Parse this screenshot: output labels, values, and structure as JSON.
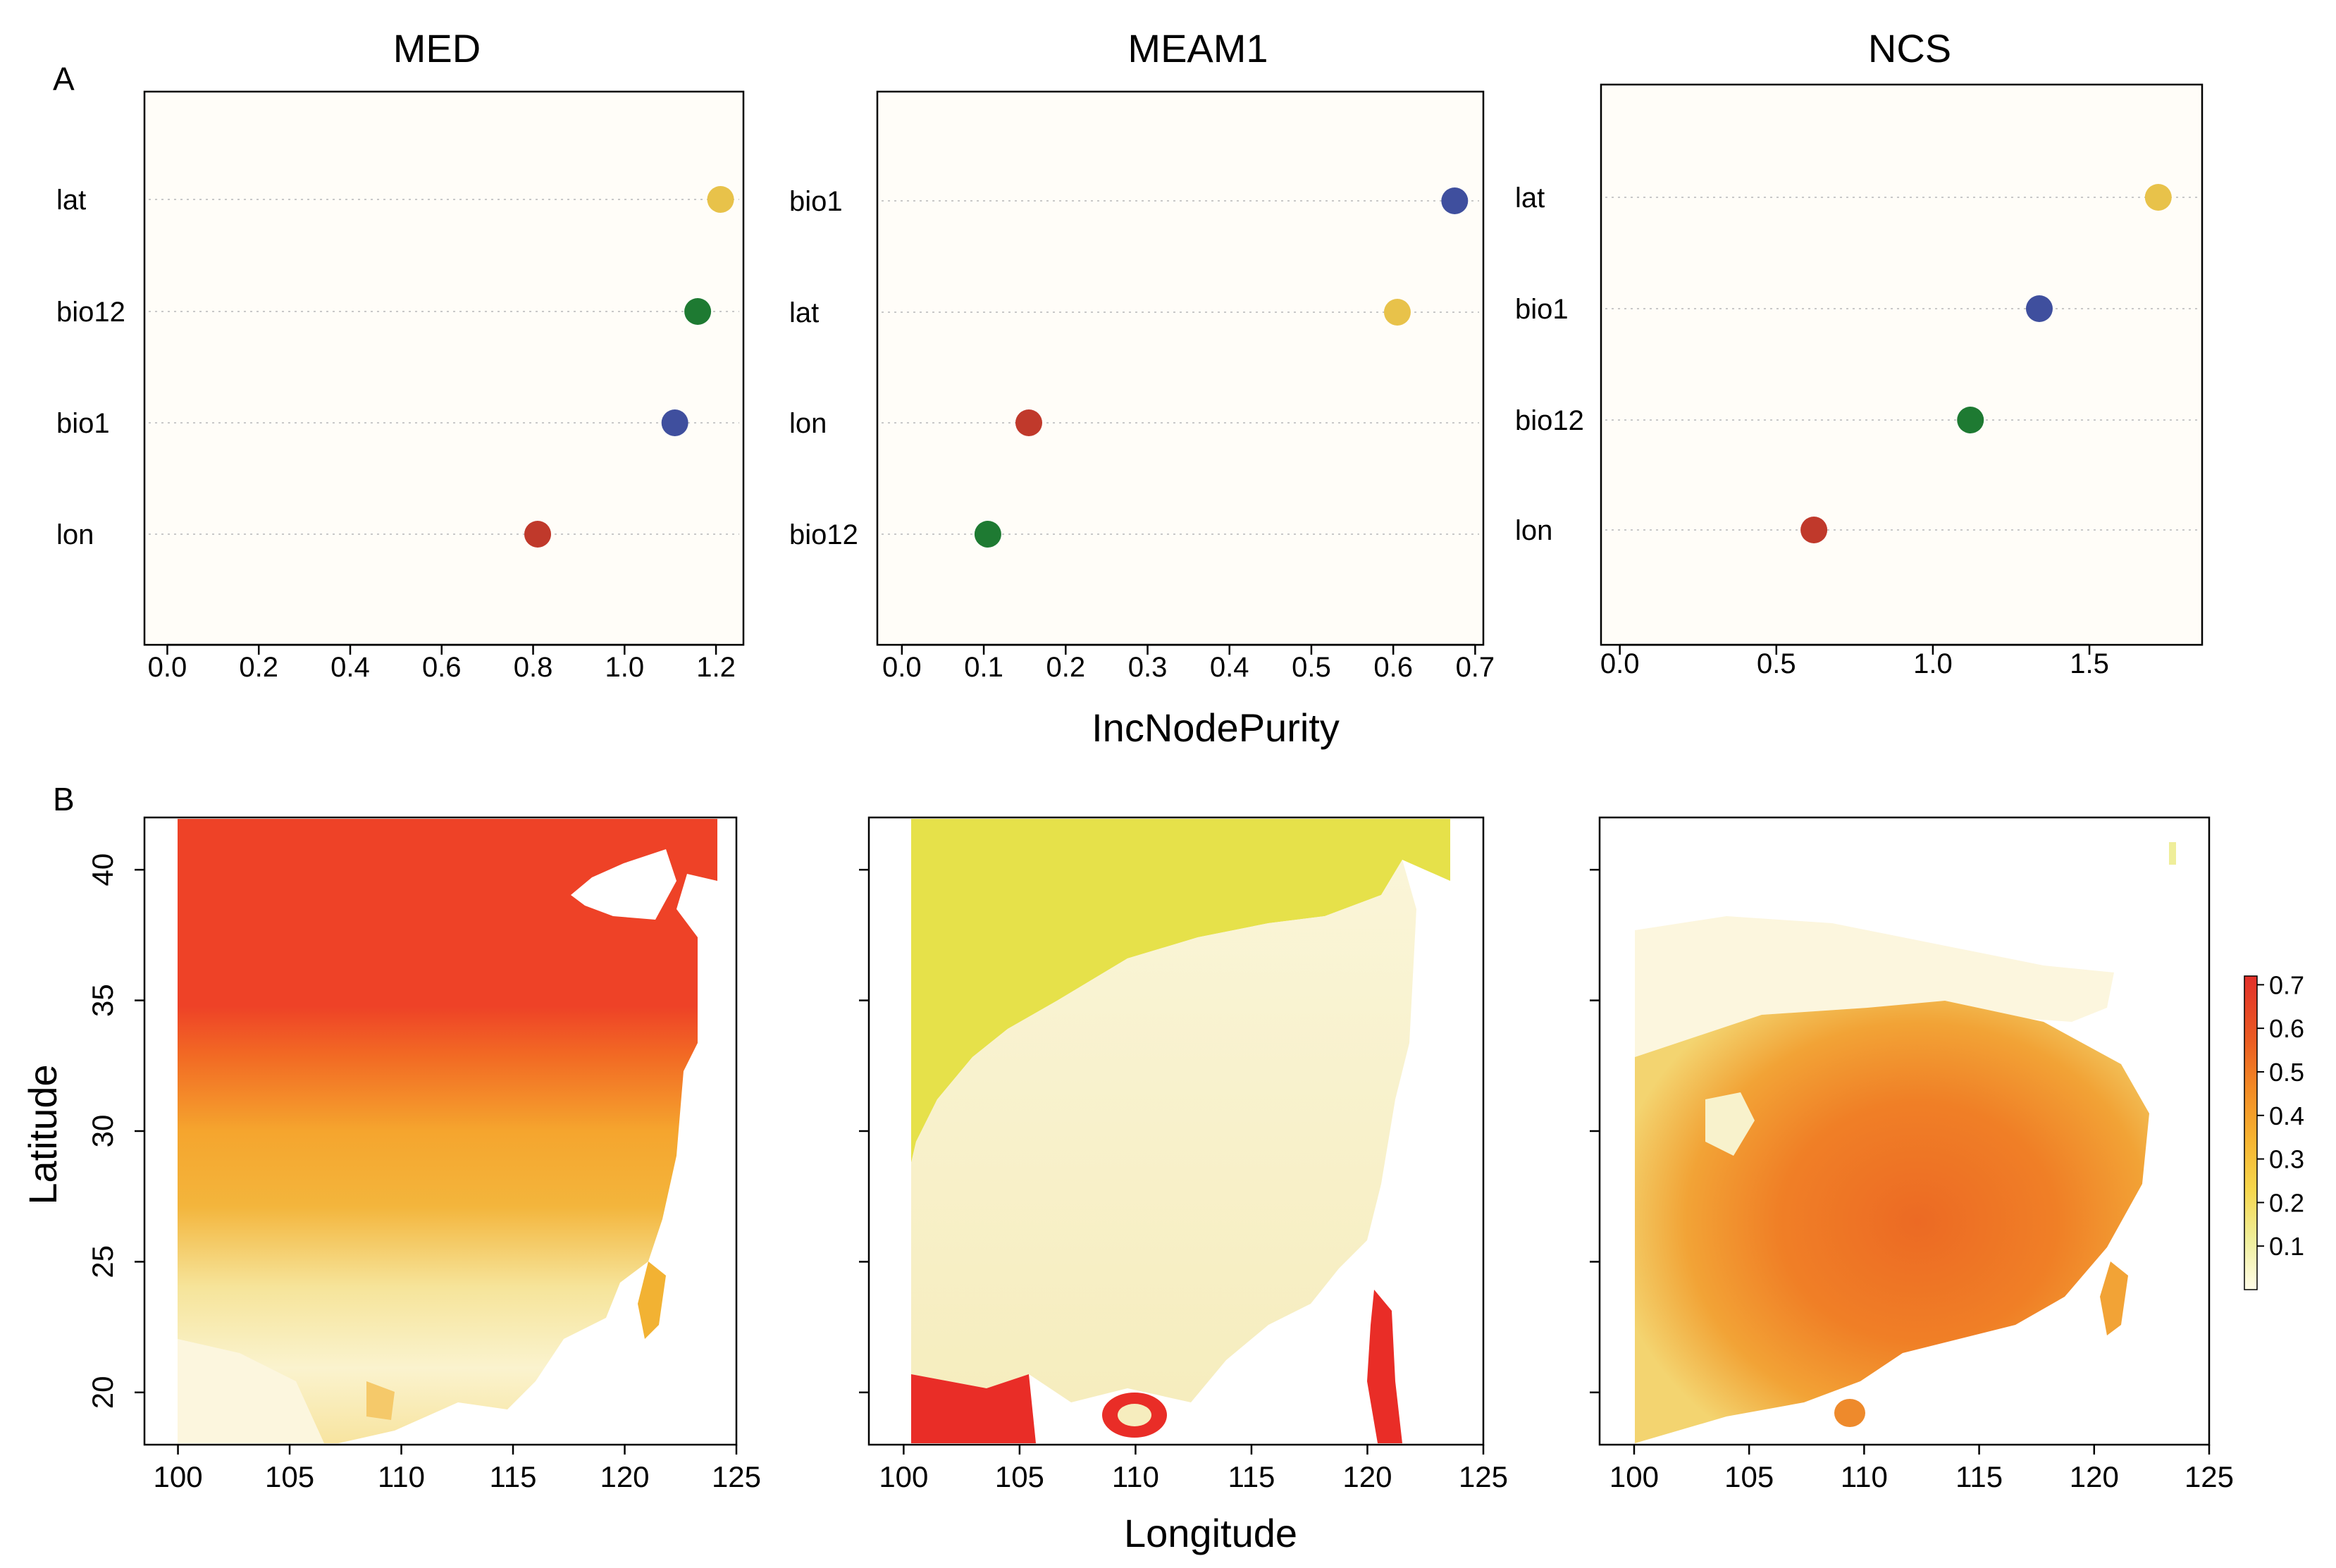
{
  "panel_labels": {
    "a": "A",
    "b": "B"
  },
  "shared_labels": {
    "xlabel_top": "IncNodePurity",
    "xlabel_bottom": "Longitude",
    "ylabel_bottom": "Latitude"
  },
  "colors": {
    "lat": "#E8C24A",
    "bio12": "#1E7A32",
    "bio1": "#3F4F9E",
    "lon": "#C0392B",
    "dotline": "#C8C8C8"
  },
  "chart_data": [
    {
      "type": "scatter",
      "title": "MED",
      "xlabel": "IncNodePurity",
      "xlim": [
        -0.05,
        1.26
      ],
      "ticks": [
        0,
        0.2,
        0.4,
        0.6,
        0.8,
        1.0,
        1.2
      ],
      "tick_labels": [
        "0.0",
        "0.2",
        "0.4",
        "0.6",
        "0.8",
        "1.0",
        "1.2"
      ],
      "variables": [
        "lat",
        "bio12",
        "bio1",
        "lon"
      ],
      "values": [
        1.21,
        1.16,
        1.11,
        0.81
      ]
    },
    {
      "type": "scatter",
      "title": "MEAM1",
      "xlabel": "IncNodePurity",
      "xlim": [
        -0.03,
        0.71
      ],
      "ticks": [
        0,
        0.1,
        0.2,
        0.3,
        0.4,
        0.5,
        0.6,
        0.7
      ],
      "tick_labels": [
        "0.0",
        "0.1",
        "0.2",
        "0.3",
        "0.4",
        "0.5",
        "0.6",
        "0.7"
      ],
      "variables": [
        "bio1",
        "lat",
        "lon",
        "bio12"
      ],
      "values": [
        0.675,
        0.605,
        0.155,
        0.105
      ]
    },
    {
      "type": "scatter",
      "title": "NCS",
      "xlabel": "IncNodePurity",
      "xlim": [
        -0.06,
        1.86
      ],
      "ticks": [
        0,
        0.5,
        1.0,
        1.5
      ],
      "tick_labels": [
        "0.0",
        "0.5",
        "1.0",
        "1.5"
      ],
      "variables": [
        "lat",
        "bio1",
        "bio12",
        "lon"
      ],
      "values": [
        1.72,
        1.34,
        1.12,
        0.62
      ]
    },
    {
      "type": "heatmap",
      "title": "MED",
      "xlabel": "Longitude",
      "ylabel": "Latitude",
      "xlim": [
        98.5,
        125
      ],
      "ylim": [
        18,
        42
      ],
      "x_ticks": [
        100,
        105,
        110,
        115,
        120,
        125
      ],
      "y_ticks": [
        20,
        25,
        30,
        35,
        40
      ]
    },
    {
      "type": "heatmap",
      "title": "MEAM1",
      "xlabel": "Longitude",
      "xlim": [
        98.5,
        125
      ],
      "ylim": [
        18,
        42
      ],
      "x_ticks": [
        100,
        105,
        110,
        115,
        120,
        125
      ],
      "y_ticks": [
        20,
        25,
        30,
        35,
        40
      ]
    },
    {
      "type": "heatmap",
      "title": "NCS",
      "xlabel": "Longitude",
      "xlim": [
        98.5,
        125
      ],
      "ylim": [
        18,
        42
      ],
      "x_ticks": [
        100,
        105,
        110,
        115,
        120,
        125
      ],
      "y_ticks": [
        20,
        25,
        30,
        35,
        40
      ],
      "colorbar": {
        "range": [
          0,
          0.72
        ],
        "ticks": [
          "0.1",
          "0.2",
          "0.3",
          "0.4",
          "0.5",
          "0.6",
          "0.7"
        ],
        "colors": [
          "#FFFCE8",
          "#EFEE9A",
          "#F6D64C",
          "#F6B330",
          "#F28A24",
          "#EA5A22",
          "#E2302A"
        ]
      }
    }
  ]
}
